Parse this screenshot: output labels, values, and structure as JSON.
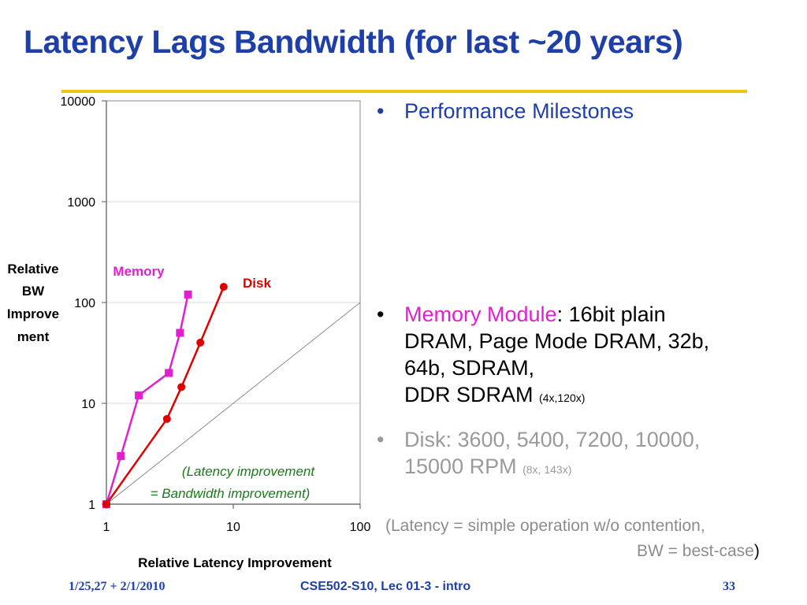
{
  "title": "Latency Lags Bandwidth (for last ~20 years)",
  "colors": {
    "title": "#1f3fa8",
    "rule": "#f2c418",
    "memory": "#e020d0",
    "disk": "#e00000",
    "annotation": "#1a7a1a",
    "gray_text": "#9a9a9a"
  },
  "bullets": {
    "dot": "•",
    "performance": "Performance Milestones",
    "memory_highlight": "Memory Module",
    "memory_line1_rest": ": 16bit plain",
    "memory_line2": "DRAM, Page Mode DRAM, 32b,",
    "memory_line3": "64b, SDRAM,",
    "memory_line4": "DDR SDRAM",
    "memory_small": "(4x,120x)",
    "disk_line1": "Disk: 3600, 5400, 7200, 10000,",
    "disk_line2": "15000 RPM",
    "disk_small": "(8x, 143x)"
  },
  "note": {
    "line1": "(Latency = simple operation w/o contention,",
    "line2": "BW = best-case",
    "close": ")"
  },
  "footer": {
    "date": "1/25,27 + 2/1/2010",
    "course": "CSE502-S10, Lec 01-3 - intro",
    "page": "33"
  },
  "chart_data": {
    "type": "line",
    "x_scale": "log",
    "y_scale": "log",
    "xlim": [
      1,
      100
    ],
    "ylim": [
      1,
      10000
    ],
    "x_ticks": [
      "1",
      "10",
      "100"
    ],
    "y_ticks": [
      "1",
      "10",
      "100",
      "1000",
      "10000"
    ],
    "xlabel": "Relative Latency Improvement",
    "ylabel": "Relative BW Improvement",
    "ylabel_lines": [
      "Relative",
      "BW",
      "Improve",
      "ment"
    ],
    "series": [
      {
        "name": "Memory",
        "color": "#e020d0",
        "marker": "square",
        "points": [
          [
            1,
            1
          ],
          [
            1.3,
            3
          ],
          [
            1.8,
            12
          ],
          [
            3.1,
            20
          ],
          [
            3.8,
            50
          ],
          [
            4.4,
            120
          ]
        ]
      },
      {
        "name": "Disk",
        "color": "#e00000",
        "marker": "circle",
        "points": [
          [
            1,
            1
          ],
          [
            3,
            7
          ],
          [
            3.9,
            14.5
          ],
          [
            5.5,
            40
          ],
          [
            8.4,
            143
          ]
        ]
      }
    ],
    "reference_line": {
      "label_line1": "(Latency improvement",
      "label_line2": "= Bandwidth improvement)",
      "points": [
        [
          1,
          1
        ],
        [
          100,
          100
        ]
      ]
    }
  }
}
